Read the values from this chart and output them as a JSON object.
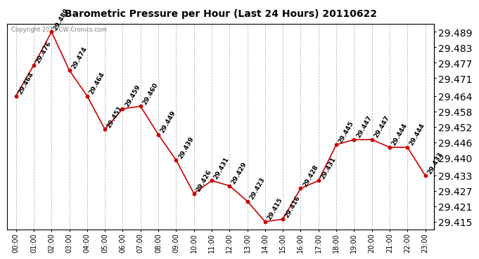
{
  "title": "Barometric Pressure per Hour (Last 24 Hours) 20110622",
  "copyright": "Copyright 2011 CW Cronics.com",
  "hours": [
    "00:00",
    "01:00",
    "02:00",
    "03:00",
    "04:00",
    "05:00",
    "06:00",
    "07:00",
    "08:00",
    "09:00",
    "10:00",
    "11:00",
    "12:00",
    "13:00",
    "14:00",
    "15:00",
    "16:00",
    "17:00",
    "18:00",
    "19:00",
    "20:00",
    "21:00",
    "22:00",
    "23:00"
  ],
  "values": [
    29.464,
    29.476,
    29.489,
    29.474,
    29.464,
    29.451,
    29.459,
    29.46,
    29.449,
    29.439,
    29.426,
    29.431,
    29.429,
    29.423,
    29.415,
    29.416,
    29.428,
    29.431,
    29.445,
    29.447,
    29.447,
    29.444,
    29.444,
    29.433
  ],
  "labels": [
    "29.464",
    "29.476",
    "29.489",
    "29.474",
    "29.464",
    "29.451",
    "29.459",
    "29.460",
    "29.449",
    "29.439",
    "29.426",
    "29.431",
    "29.429",
    "29.423",
    "29.415",
    "29.416",
    "29.428",
    "29.431",
    "29.445",
    "29.447",
    "29.447",
    "29.444",
    "29.444",
    "29.433"
  ],
  "ylim": [
    29.412,
    29.492
  ],
  "yticks": [
    29.415,
    29.421,
    29.427,
    29.433,
    29.44,
    29.446,
    29.452,
    29.458,
    29.464,
    29.471,
    29.477,
    29.483,
    29.489
  ],
  "line_color": "#cc0000",
  "marker_color": "#cc0000",
  "bg_color": "#ffffff",
  "grid_color": "#bbbbbb",
  "title_fontsize": 10,
  "label_fontsize": 6.5,
  "tick_fontsize": 7,
  "copyright_fontsize": 6
}
